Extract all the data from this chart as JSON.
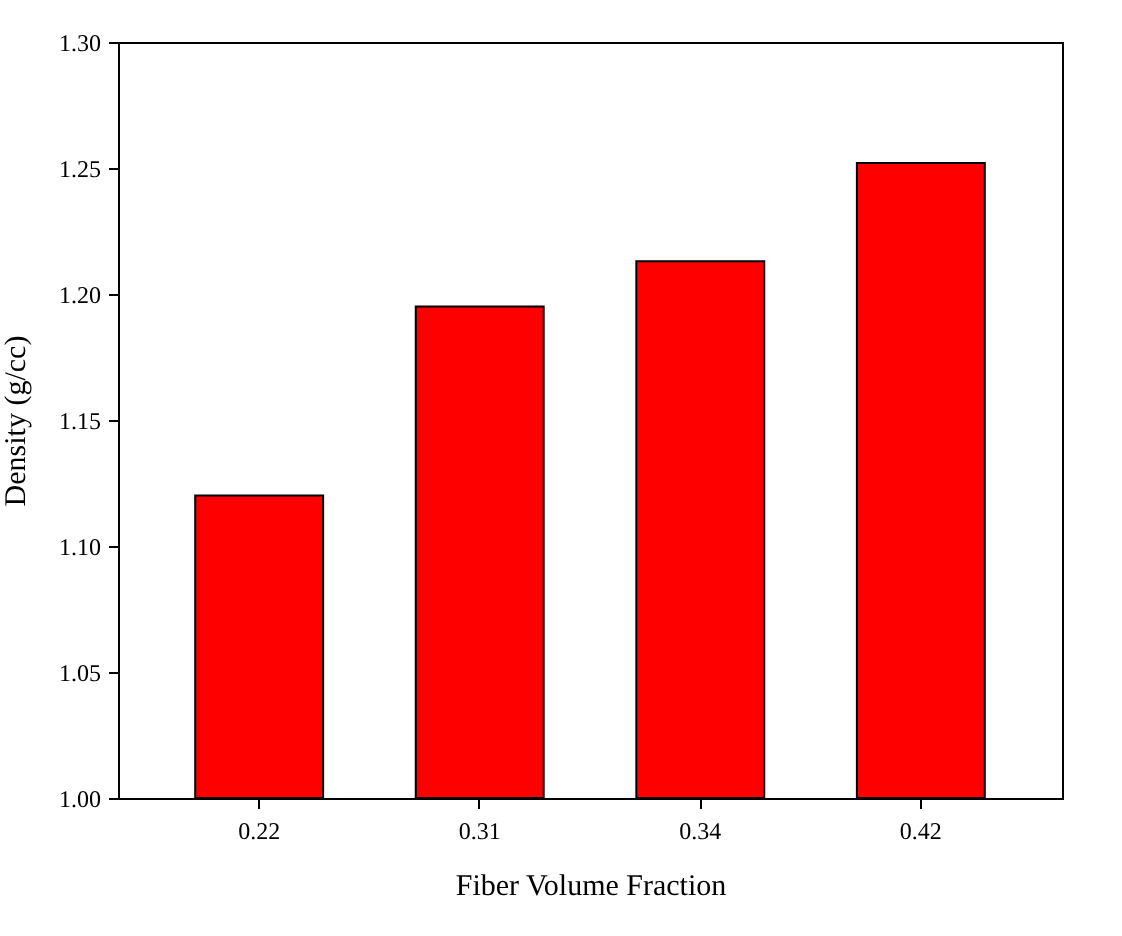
{
  "chart_data": {
    "type": "bar",
    "xlabel": "Fiber Volume Fraction",
    "ylabel": "Density (g/cc)",
    "categories": [
      "0.22",
      "0.31",
      "0.34",
      "0.42"
    ],
    "values": [
      1.12,
      1.195,
      1.213,
      1.252
    ],
    "color": "#ff0000",
    "ylim": [
      1.0,
      1.3
    ],
    "yticks": [
      {
        "value": 1.0,
        "label": "1.00"
      },
      {
        "value": 1.05,
        "label": "1.05"
      },
      {
        "value": 1.1,
        "label": "1.10"
      },
      {
        "value": 1.15,
        "label": "1.15"
      },
      {
        "value": 1.2,
        "label": "1.20"
      },
      {
        "value": 1.25,
        "label": "1.25"
      },
      {
        "value": 1.3,
        "label": "1.30"
      }
    ],
    "grid": false,
    "legend": false
  }
}
